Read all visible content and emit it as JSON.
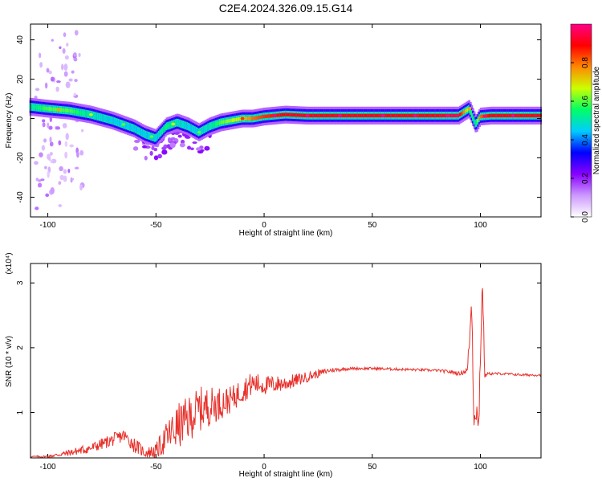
{
  "title": "C2E4.2024.326.09.15.G14",
  "chart_data": [
    {
      "type": "heatmap",
      "xlabel": "Height of straight line (km)",
      "ylabel": "Frequency (Hz)",
      "xlim": [
        -108,
        128
      ],
      "ylim": [
        -50,
        48
      ],
      "xticks": [
        -100,
        -50,
        0,
        50,
        100
      ],
      "yticks": [
        -40,
        -20,
        0,
        20,
        40
      ],
      "colorbar": {
        "label": "Normalized spectral amplitude",
        "range": [
          0,
          1
        ],
        "ticks": [
          0.0,
          0.2,
          0.4,
          0.6,
          0.8
        ],
        "colors": [
          "#ffffff",
          "#cc99ff",
          "#8800ff",
          "#0000ff",
          "#00ccff",
          "#00ff66",
          "#ccff00",
          "#ff8800",
          "#ff0000",
          "#ff0088"
        ]
      },
      "ridge": {
        "x": [
          -108,
          -100,
          -90,
          -80,
          -70,
          -60,
          -55,
          -50,
          -45,
          -40,
          -35,
          -30,
          -25,
          -20,
          -15,
          -10,
          -5,
          0,
          10,
          20,
          30,
          40,
          50,
          60,
          70,
          80,
          90,
          95,
          98,
          100,
          105,
          110,
          120,
          128
        ],
        "freq": [
          6,
          5,
          4,
          2,
          -1,
          -5,
          -8,
          -10,
          -4,
          -2,
          -4,
          -7,
          -4,
          -2,
          -1,
          0,
          0,
          1,
          2,
          1.5,
          1.5,
          1.5,
          1.5,
          1.5,
          1.5,
          1.5,
          1.5,
          5,
          -3,
          1,
          1.5,
          1.5,
          1.5,
          1.5
        ],
        "amplitude": [
          0.5,
          0.6,
          0.6,
          0.5,
          0.45,
          0.45,
          0.45,
          0.45,
          0.55,
          0.5,
          0.45,
          0.45,
          0.5,
          0.6,
          0.65,
          0.7,
          0.8,
          0.85,
          0.9,
          0.9,
          0.9,
          0.9,
          0.9,
          0.9,
          0.9,
          0.9,
          0.95,
          0.6,
          0.5,
          0.8,
          0.9,
          0.9,
          0.9,
          0.9
        ]
      }
    },
    {
      "type": "line",
      "xlabel": "Height of straight line (km)",
      "ylabel": "SNR (10 * v/v)",
      "exponent_label": "(x10⁴)",
      "xlim": [
        -108,
        128
      ],
      "ylim": [
        0.3,
        3.3
      ],
      "xticks": [
        -100,
        -50,
        0,
        50,
        100
      ],
      "yticks": [
        1,
        2,
        3
      ],
      "color": "#e8302a",
      "x": [
        -108,
        -100,
        -90,
        -80,
        -70,
        -65,
        -60,
        -55,
        -50,
        -45,
        -40,
        -35,
        -30,
        -25,
        -20,
        -15,
        -10,
        -5,
        0,
        10,
        20,
        30,
        40,
        50,
        60,
        70,
        80,
        88,
        90,
        94,
        96,
        97,
        98,
        99,
        100,
        101,
        102,
        103,
        105,
        110,
        120,
        128
      ],
      "y": [
        0.32,
        0.32,
        0.38,
        0.45,
        0.58,
        0.65,
        0.5,
        0.38,
        0.4,
        0.62,
        0.78,
        0.9,
        1.05,
        1.1,
        1.15,
        1.2,
        1.35,
        1.45,
        1.42,
        1.45,
        1.55,
        1.65,
        1.68,
        1.68,
        1.67,
        1.66,
        1.65,
        1.62,
        1.6,
        1.65,
        2.7,
        0.9,
        1.2,
        0.6,
        2.0,
        3.0,
        1.55,
        1.6,
        1.6,
        1.6,
        1.58,
        1.58
      ],
      "noise_amplitude": [
        0.01,
        0.02,
        0.05,
        0.08,
        0.1,
        0.1,
        0.12,
        0.08,
        0.12,
        0.25,
        0.35,
        0.35,
        0.35,
        0.3,
        0.25,
        0.2,
        0.2,
        0.18,
        0.15,
        0.12,
        0.08,
        0.04,
        0.02,
        0.02,
        0.02,
        0.02,
        0.02,
        0.03,
        0.03,
        0.05,
        0.3,
        0.3,
        0.3,
        0.3,
        0.3,
        0.2,
        0.04,
        0.02,
        0.02,
        0.02,
        0.02,
        0.02
      ]
    }
  ]
}
